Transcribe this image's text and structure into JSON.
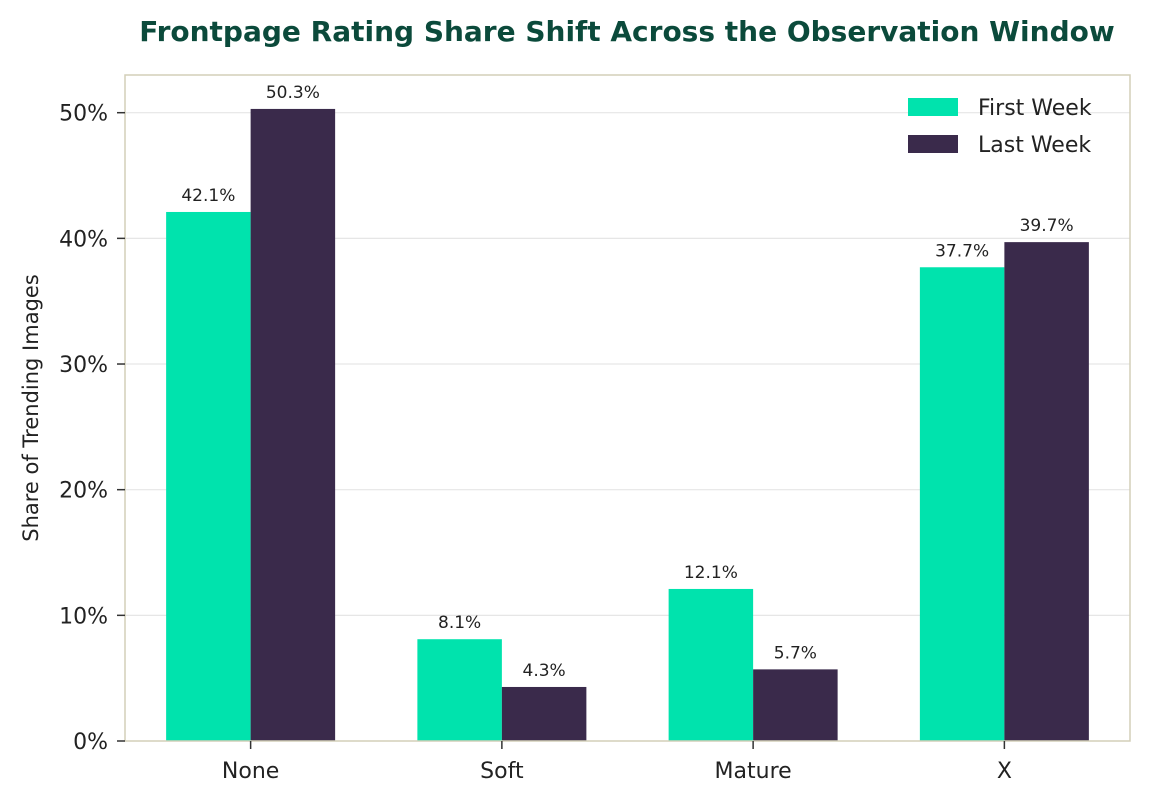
{
  "chart_data": {
    "type": "bar",
    "title": "Frontpage Rating Share Shift Across the Observation Window",
    "xlabel": "",
    "ylabel": "Share of Trending Images",
    "categories": [
      "None",
      "Soft",
      "Mature",
      "X"
    ],
    "series": [
      {
        "name": "First Week",
        "values": [
          42.1,
          8.1,
          12.1,
          37.7
        ],
        "labels": [
          "42.1%",
          "8.1%",
          "12.1%",
          "37.7%"
        ],
        "color": "#00e3ad"
      },
      {
        "name": "Last Week",
        "values": [
          50.3,
          4.3,
          5.7,
          39.7
        ],
        "labels": [
          "50.3%",
          "4.3%",
          "5.7%",
          "39.7%"
        ],
        "color": "#3a2a4b"
      }
    ],
    "ylim": [
      0,
      53
    ],
    "yticks": [
      0,
      10,
      20,
      30,
      40,
      50
    ],
    "ytick_labels": [
      "0%",
      "10%",
      "20%",
      "30%",
      "40%",
      "50%"
    ],
    "grid": true,
    "legend_position": "top-right",
    "colors": {
      "title": "#0b4a3b",
      "frame": "#d3cfb8",
      "grid": "#e6e6e6"
    }
  }
}
